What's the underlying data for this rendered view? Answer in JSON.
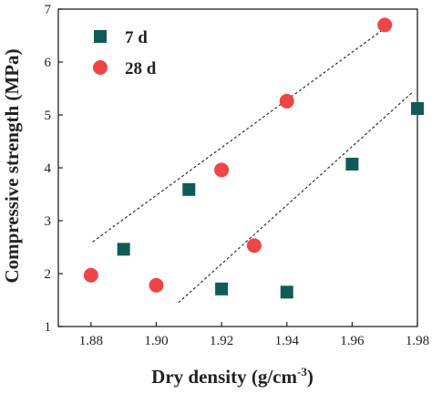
{
  "chart_data": {
    "type": "scatter",
    "title": "",
    "xlabel": "Dry density (g/cm",
    "xlabel_sup": "-3",
    "xlabel_close": ")",
    "ylabel": "Compressive strength (MPa)",
    "xlim": [
      1.87,
      1.98
    ],
    "ylim": [
      1,
      7
    ],
    "xticks": [
      "1.88",
      "1.90",
      "1.92",
      "1.94",
      "1.96",
      "1.98"
    ],
    "yticks": [
      "1",
      "2",
      "3",
      "4",
      "5",
      "6",
      "7"
    ],
    "grid": false,
    "legend_position": "top-left",
    "series": [
      {
        "name": "7 d",
        "marker": "square",
        "color": "#0f5c55",
        "x": [
          1.89,
          1.91,
          1.92,
          1.94,
          1.96,
          1.98
        ],
        "y": [
          2.46,
          3.59,
          1.71,
          1.65,
          4.07,
          5.12
        ]
      },
      {
        "name": "28 d",
        "marker": "circle",
        "color": "#ee4646",
        "x": [
          1.88,
          1.9,
          1.92,
          1.93,
          1.94,
          1.97
        ],
        "y": [
          1.97,
          1.78,
          3.96,
          2.53,
          5.26,
          6.7
        ]
      }
    ],
    "trend_lines": [
      {
        "style": "dashed",
        "x": [
          1.8805,
          1.9703
        ],
        "y": [
          2.6,
          6.65
        ]
      },
      {
        "style": "dashed",
        "x": [
          1.9068,
          1.9785
        ],
        "y": [
          1.45,
          5.43
        ]
      }
    ]
  }
}
